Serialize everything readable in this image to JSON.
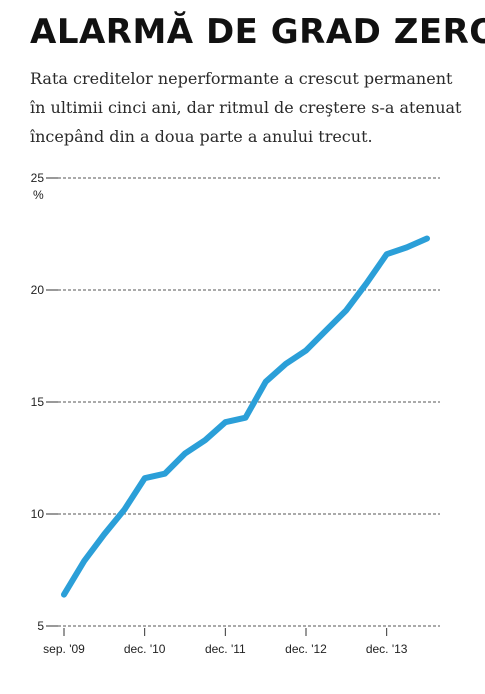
{
  "header": {
    "title": "ALARMĂ DE GRAD ZERO",
    "subtitle": "Rata creditelor neperformante a crescut permanent în ultimii cinci ani, dar ritmul de creştere s-a atenuat începând din a doua parte a anului trecut."
  },
  "chart_data": {
    "type": "line",
    "title": "ALARMĂ DE GRAD ZERO",
    "xlabel": "",
    "ylabel": "%",
    "ylim": [
      5,
      25
    ],
    "yticks": [
      5,
      10,
      15,
      20,
      25
    ],
    "grid": true,
    "x_tick_labels": [
      {
        "index": 0,
        "label": "sep. '09"
      },
      {
        "index": 4,
        "label": "dec. '10"
      },
      {
        "index": 8,
        "label": "dec. '11"
      },
      {
        "index": 12,
        "label": "dec. '12"
      },
      {
        "index": 16,
        "label": "dec. '13"
      }
    ],
    "series": [
      {
        "name": "",
        "color": "#2b9fd8",
        "values": [
          6.4,
          7.9,
          9.1,
          10.2,
          11.6,
          11.8,
          12.7,
          13.3,
          14.1,
          14.3,
          15.9,
          16.7,
          17.3,
          18.2,
          19.1,
          20.3,
          21.6,
          21.9,
          22.3
        ]
      }
    ]
  }
}
